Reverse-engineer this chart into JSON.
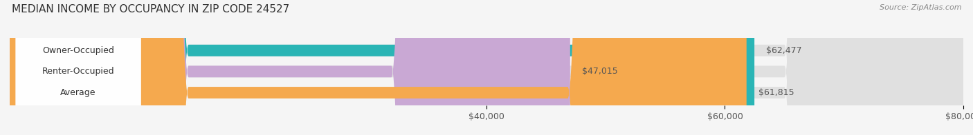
{
  "title": "MEDIAN INCOME BY OCCUPANCY IN ZIP CODE 24527",
  "source": "Source: ZipAtlas.com",
  "categories": [
    "Owner-Occupied",
    "Renter-Occupied",
    "Average"
  ],
  "values": [
    62477,
    47015,
    61815
  ],
  "labels": [
    "$62,477",
    "$47,015",
    "$61,815"
  ],
  "bar_colors": [
    "#2ab5b5",
    "#c9a8d4",
    "#f5a94e"
  ],
  "xlim": [
    0,
    80000
  ],
  "xticks": [
    40000,
    60000,
    80000
  ],
  "xticklabels": [
    "$40,000",
    "$60,000",
    "$80,000"
  ],
  "title_fontsize": 11,
  "source_fontsize": 8,
  "label_fontsize": 9,
  "tick_fontsize": 9,
  "bar_height": 0.55,
  "bg_color": "#f5f5f5",
  "bar_label_color": "#555555"
}
